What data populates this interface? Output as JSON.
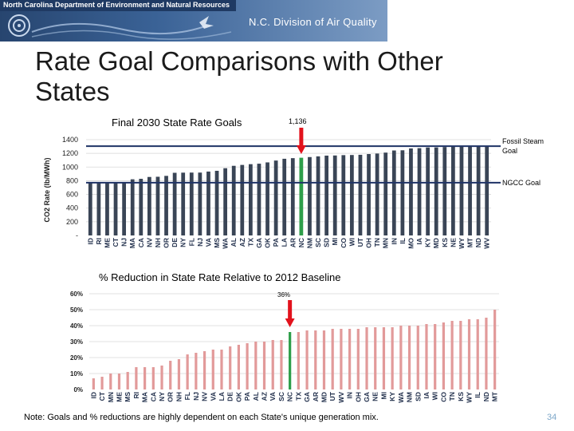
{
  "header": {
    "left_title": "North Carolina Department of Environment and Natural Resources",
    "right_title": "N.C. Division of Air Quality"
  },
  "slide": {
    "title": "Rate Goal Comparisons with Other States",
    "note": "Note: Goals and % reductions are highly dependent on each State's unique generation mix.",
    "page_number": "34"
  },
  "colors": {
    "bar": "#3a4556",
    "bar_highlight": "#2e9e4a",
    "pct_bar": "#e29a9a",
    "pct_highlight": "#2e9e4a",
    "arrow": "#e2121c",
    "ref_line": "#1f3366"
  },
  "chart_data": [
    {
      "type": "bar",
      "title": "Final 2030 State Rate Goals",
      "ylabel": "CO2 Rate (lb/MWh)",
      "ylim": [
        0,
        1400
      ],
      "yticks": [
        "-",
        "200",
        "400",
        "600",
        "800",
        "1000",
        "1200",
        "1400"
      ],
      "grid": true,
      "highlight": "NC",
      "highlight_label": "1,136",
      "categories": [
        "ID",
        "RI",
        "ME",
        "CT",
        "NJ",
        "MA",
        "CA",
        "NV",
        "NH",
        "OR",
        "DE",
        "NY",
        "FL",
        "NJ",
        "VA",
        "MS",
        "WA",
        "AL",
        "AZ",
        "TX",
        "GA",
        "OK",
        "PA",
        "LA",
        "AR",
        "NC",
        "NM",
        "SC",
        "SD",
        "MI",
        "CO",
        "WI",
        "UT",
        "OH",
        "TN",
        "MN",
        "IN",
        "IL",
        "MO",
        "IA",
        "KY",
        "MD",
        "KS",
        "NE",
        "WY",
        "MT",
        "ND",
        "WV"
      ],
      "values": [
        771,
        771,
        771,
        771,
        771,
        821,
        828,
        855,
        858,
        871,
        916,
        918,
        919,
        919,
        934,
        945,
        983,
        1018,
        1031,
        1042,
        1049,
        1068,
        1095,
        1121,
        1130,
        1136,
        1146,
        1156,
        1167,
        1169,
        1174,
        1176,
        1179,
        1190,
        1197,
        1211,
        1242,
        1245,
        1272,
        1276,
        1286,
        1287,
        1293,
        1296,
        1299,
        1305,
        1305,
        1305
      ],
      "reference_lines": [
        {
          "name": "Fossil Steam Goal",
          "value": 1305
        },
        {
          "name": "NGCC Goal",
          "value": 771
        }
      ]
    },
    {
      "type": "bar",
      "title": "% Reduction in State Rate Relative to 2012 Baseline",
      "ylim": [
        0,
        60
      ],
      "yticks": [
        "0%",
        "10%",
        "20%",
        "30%",
        "40%",
        "50%",
        "60%"
      ],
      "grid": true,
      "highlight": "NC",
      "highlight_label": "36%",
      "categories": [
        "ID",
        "CT",
        "MN",
        "ME",
        "MS",
        "RI",
        "MA",
        "CA",
        "NY",
        "OR",
        "NH",
        "FL",
        "NJ",
        "NV",
        "VA",
        "LA",
        "DE",
        "OK",
        "PA",
        "AL",
        "AZ",
        "VA",
        "SC",
        "NC",
        "TX",
        "GA",
        "AR",
        "MD",
        "UT",
        "WV",
        "IN",
        "OH",
        "GA",
        "NE",
        "MI",
        "KY",
        "WA",
        "NM",
        "SD",
        "IA",
        "WI",
        "CO",
        "TN",
        "KS",
        "WY",
        "IL",
        "ND",
        "MT"
      ],
      "values": [
        7,
        8,
        10,
        10,
        11,
        14,
        14,
        14,
        15,
        18,
        19,
        22,
        23,
        24,
        25,
        25,
        27,
        28,
        29,
        30,
        30,
        31,
        31,
        36,
        36,
        37,
        37,
        37,
        38,
        38,
        38,
        38,
        39,
        39,
        39,
        39,
        40,
        40,
        40,
        41,
        41,
        42,
        43,
        43,
        44,
        44,
        45,
        50
      ]
    }
  ]
}
